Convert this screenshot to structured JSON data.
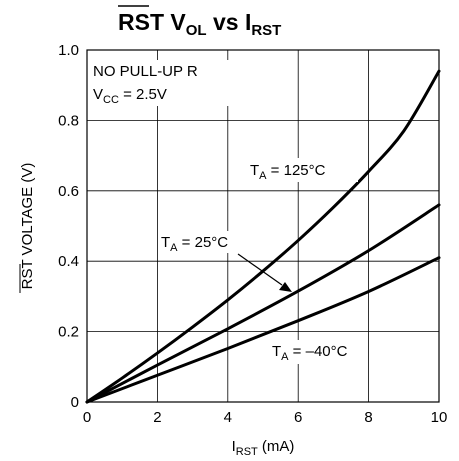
{
  "chart_data": {
    "type": "line",
    "title": {
      "overline": "RST",
      "main": " V",
      "sub": "OL",
      "mid": " vs I",
      "sub2": "RST"
    },
    "xlabel": {
      "main": "I",
      "sub": "RST",
      "rest": " (mA)"
    },
    "ylabel": {
      "overline": "RST",
      "rest": " VOLTAGE (V)"
    },
    "xlim": [
      0,
      10
    ],
    "ylim": [
      0,
      1.0
    ],
    "xticks": [
      "0",
      "2",
      "4",
      "6",
      "8",
      "10"
    ],
    "yticks": [
      "0",
      "0.2",
      "0.4",
      "0.6",
      "0.8",
      "1.0"
    ],
    "grid": true,
    "notes": [
      {
        "text": "NO PULL-UP R"
      },
      {
        "main": "V",
        "sub": "CC",
        "rest": " = 2.5V"
      }
    ],
    "series": [
      {
        "annotation": {
          "main": "T",
          "sub": "A",
          "rest": " = 125°C"
        },
        "x": [
          0,
          1,
          2,
          3,
          4,
          5,
          6,
          7,
          8,
          9,
          10
        ],
        "y": [
          0,
          0.068,
          0.139,
          0.213,
          0.29,
          0.372,
          0.459,
          0.553,
          0.655,
          0.77,
          0.94
        ]
      },
      {
        "annotation": {
          "main": "T",
          "sub": "A",
          "rest": " = 25°C"
        },
        "x": [
          0,
          2,
          4,
          6,
          8,
          10
        ],
        "y": [
          0,
          0.105,
          0.208,
          0.315,
          0.43,
          0.56
        ]
      },
      {
        "annotation": {
          "main": "T",
          "sub": "A",
          "rest": " = –40°C"
        },
        "x": [
          0,
          2,
          4,
          6,
          8,
          10
        ],
        "y": [
          0,
          0.076,
          0.152,
          0.231,
          0.314,
          0.41
        ]
      }
    ]
  }
}
